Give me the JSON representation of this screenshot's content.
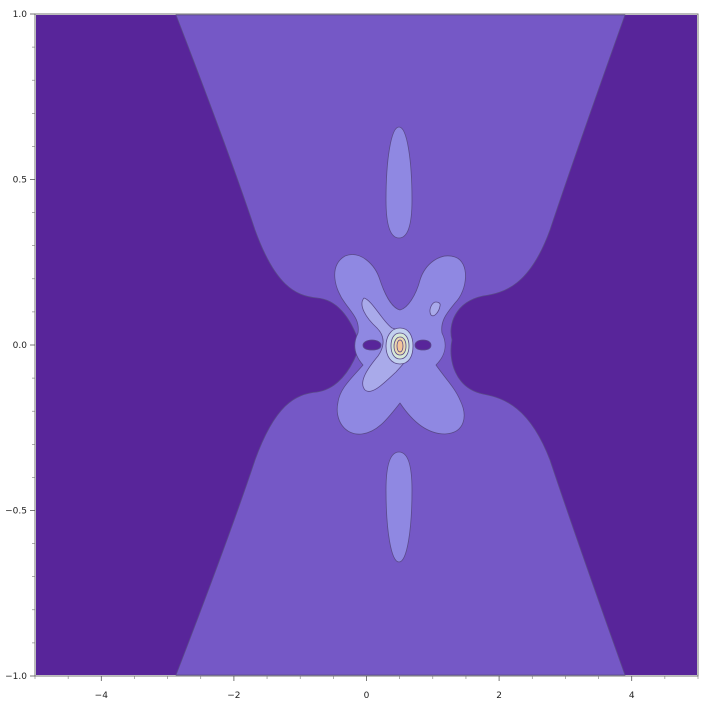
{
  "chart_data": {
    "type": "contour",
    "title": "",
    "xlabel": "",
    "ylabel": "",
    "xlim": [
      -5,
      5
    ],
    "ylim": [
      -1,
      1
    ],
    "x_ticks": [
      -4,
      -2,
      0,
      2,
      4
    ],
    "x_tick_labels": [
      "−4",
      "−2",
      "0",
      "2",
      "4"
    ],
    "y_ticks": [
      -1.0,
      -0.5,
      0.0,
      0.5,
      1.0
    ],
    "y_tick_labels": [
      "−1.0",
      "−0.5",
      "0.0",
      "0.5",
      "1.0"
    ],
    "grid": false,
    "legend": "none",
    "colors": {
      "level_1": "#58259a",
      "level_2": "#7558c6",
      "level_3": "#8f88e2",
      "level_4": "#a9aaea",
      "level_5": "#c2d0ee",
      "level_6": "#d6e8d6",
      "level_7": "#ead9b0",
      "level_8": "#f3c59b",
      "contour_line": "#5a4a8a"
    }
  }
}
